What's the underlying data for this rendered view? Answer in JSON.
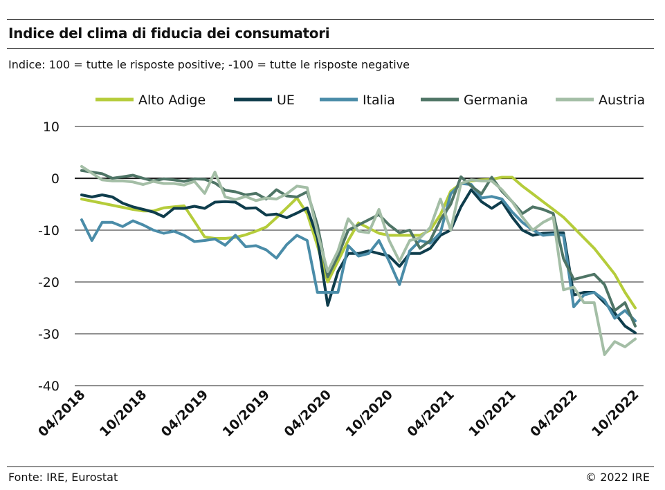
{
  "header": {
    "title": "Indice del clima di fiducia dei consumatori",
    "subtitle": "Indice: 100 = tutte le risposte positive; -100 = tutte le risposte negative"
  },
  "footer": {
    "source": "Fonte: IRE, Eurostat",
    "copyright": "© 2022 IRE"
  },
  "chart_data": {
    "type": "line",
    "title": "Indice del clima di fiducia dei consumatori",
    "ylim": [
      -40,
      10
    ],
    "yticks": [
      10,
      0,
      -10,
      -20,
      -30,
      -40
    ],
    "ytick_labels": [
      "10",
      "0",
      "-10",
      "-20",
      "-30",
      "-40"
    ],
    "xtick_labels": [
      "04/2018",
      "10/2018",
      "04/2019",
      "10/2019",
      "04/2020",
      "10/2020",
      "04/2021",
      "10/2021",
      "04/2022",
      "10/2022"
    ],
    "xtick_index": [
      0,
      6,
      12,
      18,
      24,
      30,
      36,
      42,
      48,
      54
    ],
    "zero_line": true,
    "grid": true,
    "legend_position": "top",
    "x": [
      "04/2018",
      "05/2018",
      "06/2018",
      "07/2018",
      "08/2018",
      "09/2018",
      "10/2018",
      "11/2018",
      "12/2018",
      "01/2019",
      "02/2019",
      "03/2019",
      "04/2019",
      "05/2019",
      "06/2019",
      "07/2019",
      "08/2019",
      "09/2019",
      "10/2019",
      "11/2019",
      "12/2019",
      "01/2020",
      "02/2020",
      "03/2020",
      "04/2020",
      "05/2020",
      "06/2020",
      "07/2020",
      "08/2020",
      "09/2020",
      "10/2020",
      "11/2020",
      "12/2020",
      "01/2021",
      "02/2021",
      "03/2021",
      "04/2021",
      "05/2021",
      "06/2021",
      "07/2021",
      "08/2021",
      "09/2021",
      "10/2021",
      "11/2021",
      "12/2021",
      "01/2022",
      "02/2022",
      "03/2022",
      "04/2022",
      "05/2022",
      "06/2022",
      "07/2022",
      "08/2022",
      "09/2022",
      "10/2022"
    ],
    "series": [
      {
        "name": "Alto Adige",
        "color": "#b5cc3a",
        "values": [
          -4.0,
          -4.4,
          -4.8,
          -5.2,
          -5.6,
          -6.0,
          -6.3,
          -6.3,
          -5.7,
          -5.5,
          -5.3,
          -8.3,
          -11.3,
          -11.6,
          -11.6,
          -11.4,
          -10.9,
          -10.2,
          -9.4,
          -7.6,
          -5.7,
          -3.8,
          -6.8,
          -13.0,
          -20.0,
          -16.0,
          -12.0,
          -8.6,
          -9.6,
          -10.6,
          -11.0,
          -11.0,
          -11.0,
          -11.0,
          -10.0,
          -7.0,
          -2.5,
          -1.0,
          -0.5,
          -0.3,
          -0.2,
          0.2,
          0.2,
          -1.5,
          -3.0,
          -4.5,
          -6.0,
          -7.5,
          -9.5,
          -11.5,
          -13.5,
          -16.0,
          -18.5,
          -22.0,
          -25.0
        ]
      },
      {
        "name": "UE",
        "color": "#0f3d4c",
        "values": [
          -3.2,
          -3.6,
          -3.2,
          -3.6,
          -4.8,
          -5.5,
          -6.0,
          -6.5,
          -7.4,
          -5.8,
          -5.8,
          -5.4,
          -5.8,
          -4.6,
          -4.5,
          -4.6,
          -5.8,
          -5.7,
          -7.1,
          -6.9,
          -7.6,
          -6.7,
          -5.7,
          -11.5,
          -24.5,
          -18.0,
          -14.5,
          -14.5,
          -14.0,
          -14.5,
          -15.0,
          -17.0,
          -14.5,
          -14.5,
          -13.5,
          -11.0,
          -10.0,
          -5.5,
          -2.2,
          -4.5,
          -5.8,
          -4.5,
          -7.5,
          -10.0,
          -11.0,
          -10.6,
          -10.5,
          -10.5,
          -22.5,
          -22.0,
          -22.0,
          -24.0,
          -26.0,
          -28.5,
          -29.8
        ]
      },
      {
        "name": "Italia",
        "color": "#4a8ca8",
        "values": [
          -8.0,
          -12.0,
          -8.5,
          -8.5,
          -9.3,
          -8.2,
          -9.0,
          -10.0,
          -10.6,
          -10.2,
          -11.0,
          -12.2,
          -12.0,
          -11.7,
          -12.9,
          -11.0,
          -13.2,
          -13.0,
          -13.8,
          -15.4,
          -12.8,
          -11.0,
          -12.0,
          -22.0,
          -22.0,
          -22.0,
          -13.0,
          -15.0,
          -14.5,
          -12.0,
          -16.0,
          -20.5,
          -14.0,
          -12.0,
          -12.5,
          -10.5,
          -3.0,
          -1.0,
          -1.2,
          -3.8,
          -3.5,
          -4.0,
          -6.5,
          -8.5,
          -10.0,
          -11.0,
          -10.8,
          -11.0,
          -24.8,
          -22.5,
          -22.0,
          -23.5,
          -27.0,
          -25.5,
          -27.5
        ]
      },
      {
        "name": "Germania",
        "color": "#4f7566",
        "values": [
          1.5,
          1.2,
          0.9,
          0.0,
          0.3,
          0.6,
          0.0,
          -0.5,
          -0.1,
          -0.3,
          -0.6,
          -0.1,
          -0.2,
          -0.9,
          -2.3,
          -2.6,
          -3.2,
          -2.9,
          -4.0,
          -2.2,
          -3.4,
          -3.6,
          -2.6,
          -9.0,
          -19.0,
          -15.0,
          -10.0,
          -9.0,
          -8.0,
          -7.0,
          -9.0,
          -10.5,
          -10.0,
          -13.5,
          -12.0,
          -8.0,
          -5.0,
          0.3,
          -1.5,
          -3.0,
          0.2,
          -2.5,
          -4.5,
          -6.8,
          -5.5,
          -6.0,
          -6.8,
          -15.5,
          -19.5,
          -19.0,
          -18.5,
          -20.5,
          -25.5,
          -24.0,
          -28.5
        ]
      },
      {
        "name": "Austria",
        "color": "#a4bea6",
        "values": [
          2.3,
          1.0,
          -0.3,
          -0.5,
          -0.5,
          -0.7,
          -1.2,
          -0.6,
          -1.0,
          -1.0,
          -1.3,
          -0.6,
          -2.9,
          1.2,
          -3.6,
          -4.1,
          -3.5,
          -4.3,
          -3.8,
          -4.0,
          -3.0,
          -1.5,
          -1.8,
          -10.5,
          -18.0,
          -14.0,
          -7.8,
          -10.2,
          -10.5,
          -6.0,
          -12.0,
          -16.0,
          -12.0,
          -11.5,
          -9.5,
          -4.0,
          -10.0,
          -1.0,
          -0.3,
          -0.5,
          -0.5,
          -2.2,
          -4.5,
          -7.5,
          -10.0,
          -8.5,
          -7.5,
          -21.5,
          -21.0,
          -24.0,
          -24.0,
          -34.0,
          -31.5,
          -32.5,
          -31.0
        ]
      }
    ]
  }
}
